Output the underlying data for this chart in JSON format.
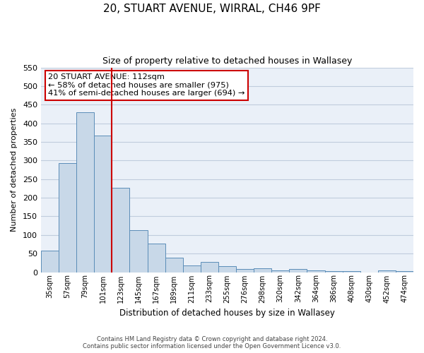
{
  "title1": "20, STUART AVENUE, WIRRAL, CH46 9PF",
  "title2": "Size of property relative to detached houses in Wallasey",
  "xlabel": "Distribution of detached houses by size in Wallasey",
  "ylabel": "Number of detached properties",
  "bar_color": "#c8d8e8",
  "bar_edge_color": "#5b8db8",
  "grid_color": "#c0ccdd",
  "bg_color": "#eaf0f8",
  "categories": [
    "35sqm",
    "57sqm",
    "79sqm",
    "101sqm",
    "123sqm",
    "145sqm",
    "167sqm",
    "189sqm",
    "211sqm",
    "233sqm",
    "255sqm",
    "276sqm",
    "298sqm",
    "320sqm",
    "342sqm",
    "364sqm",
    "386sqm",
    "408sqm",
    "430sqm",
    "452sqm",
    "474sqm"
  ],
  "values": [
    57,
    293,
    430,
    368,
    226,
    113,
    76,
    38,
    18,
    28,
    16,
    8,
    10,
    5,
    9,
    4,
    2,
    2,
    0,
    5,
    3
  ],
  "ylim": [
    0,
    550
  ],
  "yticks": [
    0,
    50,
    100,
    150,
    200,
    250,
    300,
    350,
    400,
    450,
    500,
    550
  ],
  "property_line_x": 3.5,
  "property_line_color": "#cc0000",
  "annotation_title": "20 STUART AVENUE: 112sqm",
  "annotation_line1": "← 58% of detached houses are smaller (975)",
  "annotation_line2": "41% of semi-detached houses are larger (694) →",
  "annotation_box_color": "#cc0000",
  "footnote1": "Contains HM Land Registry data © Crown copyright and database right 2024.",
  "footnote2": "Contains public sector information licensed under the Open Government Licence v3.0."
}
